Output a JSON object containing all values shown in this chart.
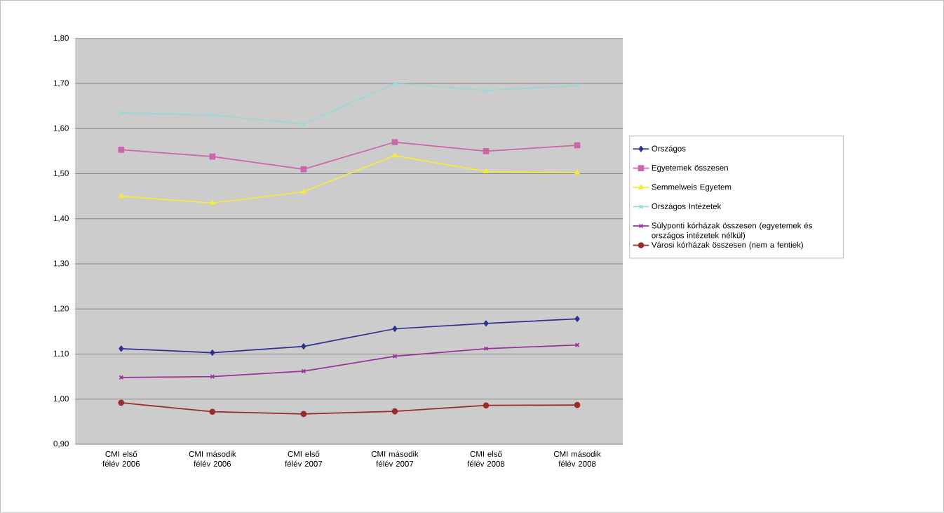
{
  "chart_data": {
    "type": "line",
    "categories": [
      "CMI első félév 2006",
      "CMI második félév 2006",
      "CMI első félév 2007",
      "CMI második félév 2007",
      "CMI első félév 2008",
      "CMI második félév 2008"
    ],
    "series": [
      {
        "name": "Országos",
        "color": "#2e3192",
        "marker": "diamond",
        "values": [
          1.112,
          1.103,
          1.117,
          1.156,
          1.168,
          1.178
        ]
      },
      {
        "name": "Egyetemek összesen",
        "color": "#cc66aa",
        "marker": "square",
        "values": [
          1.553,
          1.538,
          1.51,
          1.57,
          1.55,
          1.563
        ]
      },
      {
        "name": "Semmelweis Egyetem",
        "color": "#f5ea3c",
        "marker": "triangle",
        "values": [
          1.45,
          1.435,
          1.46,
          1.54,
          1.505,
          1.502
        ]
      },
      {
        "name": "Országos Intézetek",
        "color": "#9ad8da",
        "marker": "cross",
        "values": [
          1.635,
          1.63,
          1.61,
          1.7,
          1.685,
          1.695
        ]
      },
      {
        "name": "Súlyponti kórházak összesen (egyetemek és országos intézetek nélkül)",
        "color": "#993399",
        "marker": "cross",
        "values": [
          1.048,
          1.05,
          1.062,
          1.095,
          1.112,
          1.12
        ]
      },
      {
        "name": "Városi kórházak összesen (nem a fentiek)",
        "color": "#9b2c2c",
        "marker": "circle",
        "values": [
          0.992,
          0.972,
          0.967,
          0.973,
          0.986,
          0.987
        ]
      }
    ],
    "ylim": [
      0.9,
      1.8
    ],
    "yticks": [
      {
        "value": 0.9,
        "label": "0,90"
      },
      {
        "value": 1.0,
        "label": "1,00"
      },
      {
        "value": 1.1,
        "label": "1,10"
      },
      {
        "value": 1.2,
        "label": "1,20"
      },
      {
        "value": 1.3,
        "label": "1,30"
      },
      {
        "value": 1.4,
        "label": "1,40"
      },
      {
        "value": 1.5,
        "label": "1,50"
      },
      {
        "value": 1.6,
        "label": "1,60"
      },
      {
        "value": 1.7,
        "label": "1,70"
      },
      {
        "value": 1.8,
        "label": "1,80"
      }
    ],
    "grid": "y",
    "legend": "right"
  }
}
